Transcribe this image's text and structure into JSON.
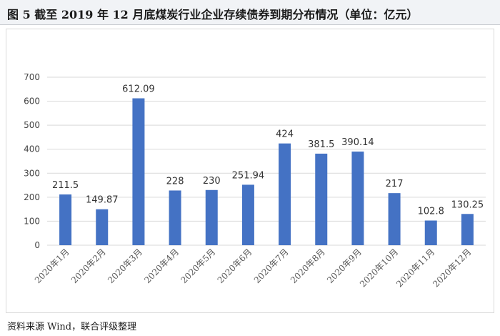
{
  "figure": {
    "title": "图 5   截至 2019 年 12 月底煤炭行业企业存续债券到期分布情况（单位：亿元）",
    "source": "资料来源 Wind，联合评级整理"
  },
  "chart_data": {
    "type": "bar",
    "categories": [
      "2020年1月",
      "2020年2月",
      "2020年3月",
      "2020年4月",
      "2020年5月",
      "2020年6月",
      "2020年7月",
      "2020年8月",
      "2020年9月",
      "2020年10月",
      "2020年11月",
      "2020年12月"
    ],
    "values": [
      211.5,
      149.87,
      612.09,
      228,
      230,
      251.94,
      424,
      381.5,
      390.14,
      217,
      102.8,
      130.25
    ],
    "value_labels": [
      "211.5",
      "149.87",
      "612.09",
      "228",
      "230",
      "251.94",
      "424",
      "381.5",
      "390.14",
      "217",
      "102.8",
      "130.25"
    ],
    "yticks": [
      "0",
      "100",
      "200",
      "300",
      "400",
      "500",
      "600",
      "700"
    ],
    "ylim": [
      0,
      700
    ],
    "grid": true,
    "bar_color": "#4472c4",
    "grid_color": "#d9d9d9"
  }
}
